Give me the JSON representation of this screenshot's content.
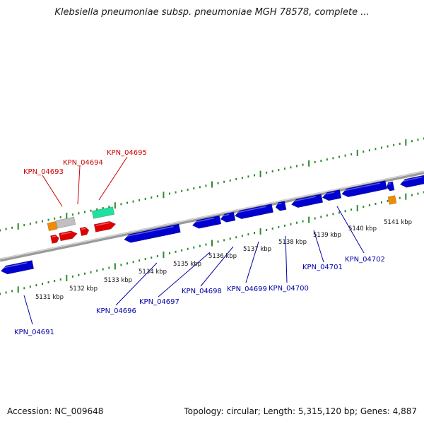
{
  "title": "Klebsiella pneumoniae subsp. pneumoniae MGH 78578, complete ...",
  "footer": {
    "accession": "Accession: NC_009648",
    "topology": "Topology: circular; Length: 5,315,120 bp; Genes: 4,887"
  },
  "colors": {
    "backbone": "#9a9a9a",
    "tick": "#2b8a2b",
    "gene_forward": "#e00000",
    "gene_reverse": "#0000d0",
    "label_forward": "#cc0000",
    "label_reverse": "#0000aa",
    "orange": "#f08c00",
    "gray_feature": "#c0c0c0",
    "mint_feature": "#20e0a0"
  },
  "scale_labels": [
    "5131 kbp",
    "5132 kbp",
    "5133 kbp",
    "5134 kbp",
    "5135 kbp",
    "5136 kbp",
    "5137 kbp",
    "5138 kbp",
    "5139 kbp",
    "5140 kbp",
    "5141 kbp"
  ],
  "forward_labels": [
    "KPN_04693",
    "KPN_04694",
    "KPN_04695"
  ],
  "reverse_labels": [
    "KPN_04691",
    "KPN_04696",
    "KPN_04697",
    "KPN_04698",
    "KPN_04699",
    "KPN_04700",
    "KPN_04701",
    "KPN_04702"
  ]
}
